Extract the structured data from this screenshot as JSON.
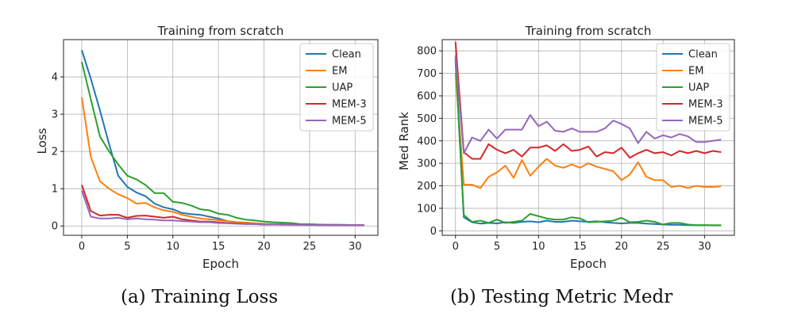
{
  "chart_data": [
    {
      "type": "line",
      "title": "Training from scratch",
      "xlabel": "Epoch",
      "ylabel": "Loss",
      "xlim": [
        -2,
        32.5
      ],
      "ylim": [
        -0.25,
        5.0
      ],
      "xticks": [
        "0",
        "5",
        "10",
        "15",
        "20",
        "25",
        "30"
      ],
      "yticks": [
        "0",
        "1",
        "2",
        "3",
        "4"
      ],
      "grid": true,
      "legend_position": "top-right",
      "x": [
        0,
        1,
        2,
        3,
        4,
        5,
        6,
        7,
        8,
        9,
        10,
        11,
        12,
        13,
        14,
        15,
        16,
        17,
        18,
        19,
        20,
        21,
        22,
        23,
        24,
        25,
        26,
        27,
        28,
        29,
        30,
        31
      ],
      "series": [
        {
          "name": "Clean",
          "color": "#1f77b4",
          "values": [
            4.72,
            3.95,
            3.1,
            2.2,
            1.35,
            1.05,
            0.9,
            0.8,
            0.6,
            0.5,
            0.45,
            0.35,
            0.32,
            0.3,
            0.25,
            0.2,
            0.13,
            0.1,
            0.09,
            0.07,
            0.05,
            0.05,
            0.04,
            0.04,
            0.04,
            0.03,
            0.03,
            0.03,
            0.03,
            0.02,
            0.02,
            0.02
          ]
        },
        {
          "name": "EM",
          "color": "#ff7f0e",
          "values": [
            3.45,
            1.85,
            1.2,
            1.0,
            0.85,
            0.75,
            0.6,
            0.62,
            0.5,
            0.42,
            0.38,
            0.3,
            0.25,
            0.2,
            0.18,
            0.16,
            0.13,
            0.1,
            0.09,
            0.07,
            0.06,
            0.05,
            0.05,
            0.04,
            0.04,
            0.03,
            0.03,
            0.03,
            0.02,
            0.02,
            0.02,
            0.02
          ]
        },
        {
          "name": "UAP",
          "color": "#2ca02c",
          "values": [
            4.4,
            3.4,
            2.4,
            2.0,
            1.65,
            1.35,
            1.25,
            1.1,
            0.88,
            0.88,
            0.65,
            0.62,
            0.55,
            0.45,
            0.42,
            0.33,
            0.3,
            0.22,
            0.17,
            0.15,
            0.12,
            0.1,
            0.09,
            0.08,
            0.05,
            0.05,
            0.04,
            0.03,
            0.03,
            0.03,
            0.02,
            0.02
          ]
        },
        {
          "name": "MEM-3",
          "color": "#d62728",
          "values": [
            1.1,
            0.4,
            0.28,
            0.3,
            0.3,
            0.22,
            0.27,
            0.28,
            0.25,
            0.22,
            0.25,
            0.18,
            0.15,
            0.12,
            0.12,
            0.1,
            0.08,
            0.07,
            0.06,
            0.05,
            0.04,
            0.04,
            0.04,
            0.03,
            0.03,
            0.03,
            0.02,
            0.02,
            0.02,
            0.02,
            0.02,
            0.02
          ]
        },
        {
          "name": "MEM-5",
          "color": "#9467bd",
          "values": [
            0.95,
            0.25,
            0.2,
            0.2,
            0.22,
            0.18,
            0.2,
            0.18,
            0.17,
            0.15,
            0.15,
            0.13,
            0.12,
            0.1,
            0.1,
            0.08,
            0.07,
            0.06,
            0.05,
            0.05,
            0.04,
            0.04,
            0.03,
            0.03,
            0.03,
            0.03,
            0.02,
            0.02,
            0.02,
            0.02,
            0.02,
            0.02
          ]
        }
      ]
    },
    {
      "type": "line",
      "title": "Training from scratch",
      "xlabel": "Epoch",
      "ylabel": "Med Rank",
      "xlim": [
        -1.6,
        33.6
      ],
      "ylim": [
        -20,
        850
      ],
      "xticks": [
        "0",
        "5",
        "10",
        "15",
        "20",
        "25",
        "30"
      ],
      "yticks": [
        "0",
        "100",
        "200",
        "300",
        "400",
        "500",
        "600",
        "700",
        "800"
      ],
      "grid": true,
      "legend_position": "top-right",
      "x": [
        0,
        1,
        2,
        3,
        4,
        5,
        6,
        7,
        8,
        9,
        10,
        11,
        12,
        13,
        14,
        15,
        16,
        17,
        18,
        19,
        20,
        21,
        22,
        23,
        24,
        25,
        26,
        27,
        28,
        29,
        30,
        31,
        32
      ],
      "series": [
        {
          "name": "Clean",
          "color": "#1f77b4",
          "values": [
            760,
            60,
            38,
            32,
            35,
            33,
            38,
            35,
            40,
            42,
            38,
            45,
            40,
            40,
            45,
            42,
            40,
            42,
            38,
            35,
            33,
            35,
            35,
            32,
            30,
            28,
            27,
            27,
            25,
            25,
            25,
            24,
            24
          ]
        },
        {
          "name": "EM",
          "color": "#ff7f0e",
          "values": [
            700,
            205,
            205,
            190,
            240,
            260,
            290,
            235,
            315,
            245,
            285,
            320,
            290,
            280,
            295,
            280,
            300,
            285,
            275,
            265,
            225,
            250,
            305,
            240,
            225,
            225,
            195,
            200,
            190,
            200,
            195,
            195,
            198
          ]
        },
        {
          "name": "UAP",
          "color": "#2ca02c",
          "values": [
            770,
            70,
            40,
            45,
            35,
            50,
            35,
            40,
            45,
            75,
            65,
            55,
            50,
            50,
            60,
            55,
            38,
            40,
            42,
            45,
            58,
            38,
            40,
            45,
            40,
            28,
            35,
            35,
            28,
            25,
            25,
            25,
            25
          ]
        },
        {
          "name": "MEM-3",
          "color": "#d62728",
          "values": [
            840,
            350,
            320,
            320,
            385,
            360,
            345,
            360,
            330,
            370,
            370,
            380,
            355,
            385,
            355,
            360,
            375,
            330,
            350,
            345,
            370,
            325,
            345,
            360,
            345,
            350,
            335,
            355,
            345,
            355,
            345,
            355,
            350
          ]
        },
        {
          "name": "MEM-5",
          "color": "#9467bd",
          "values": [
            780,
            345,
            415,
            400,
            450,
            410,
            450,
            450,
            450,
            515,
            465,
            485,
            445,
            440,
            455,
            440,
            440,
            440,
            455,
            490,
            475,
            455,
            390,
            440,
            410,
            425,
            415,
            430,
            420,
            395,
            395,
            400,
            405
          ]
        }
      ]
    }
  ],
  "captions": {
    "left": "(a) Training Loss",
    "right": "(b) Testing Metric Medr"
  }
}
